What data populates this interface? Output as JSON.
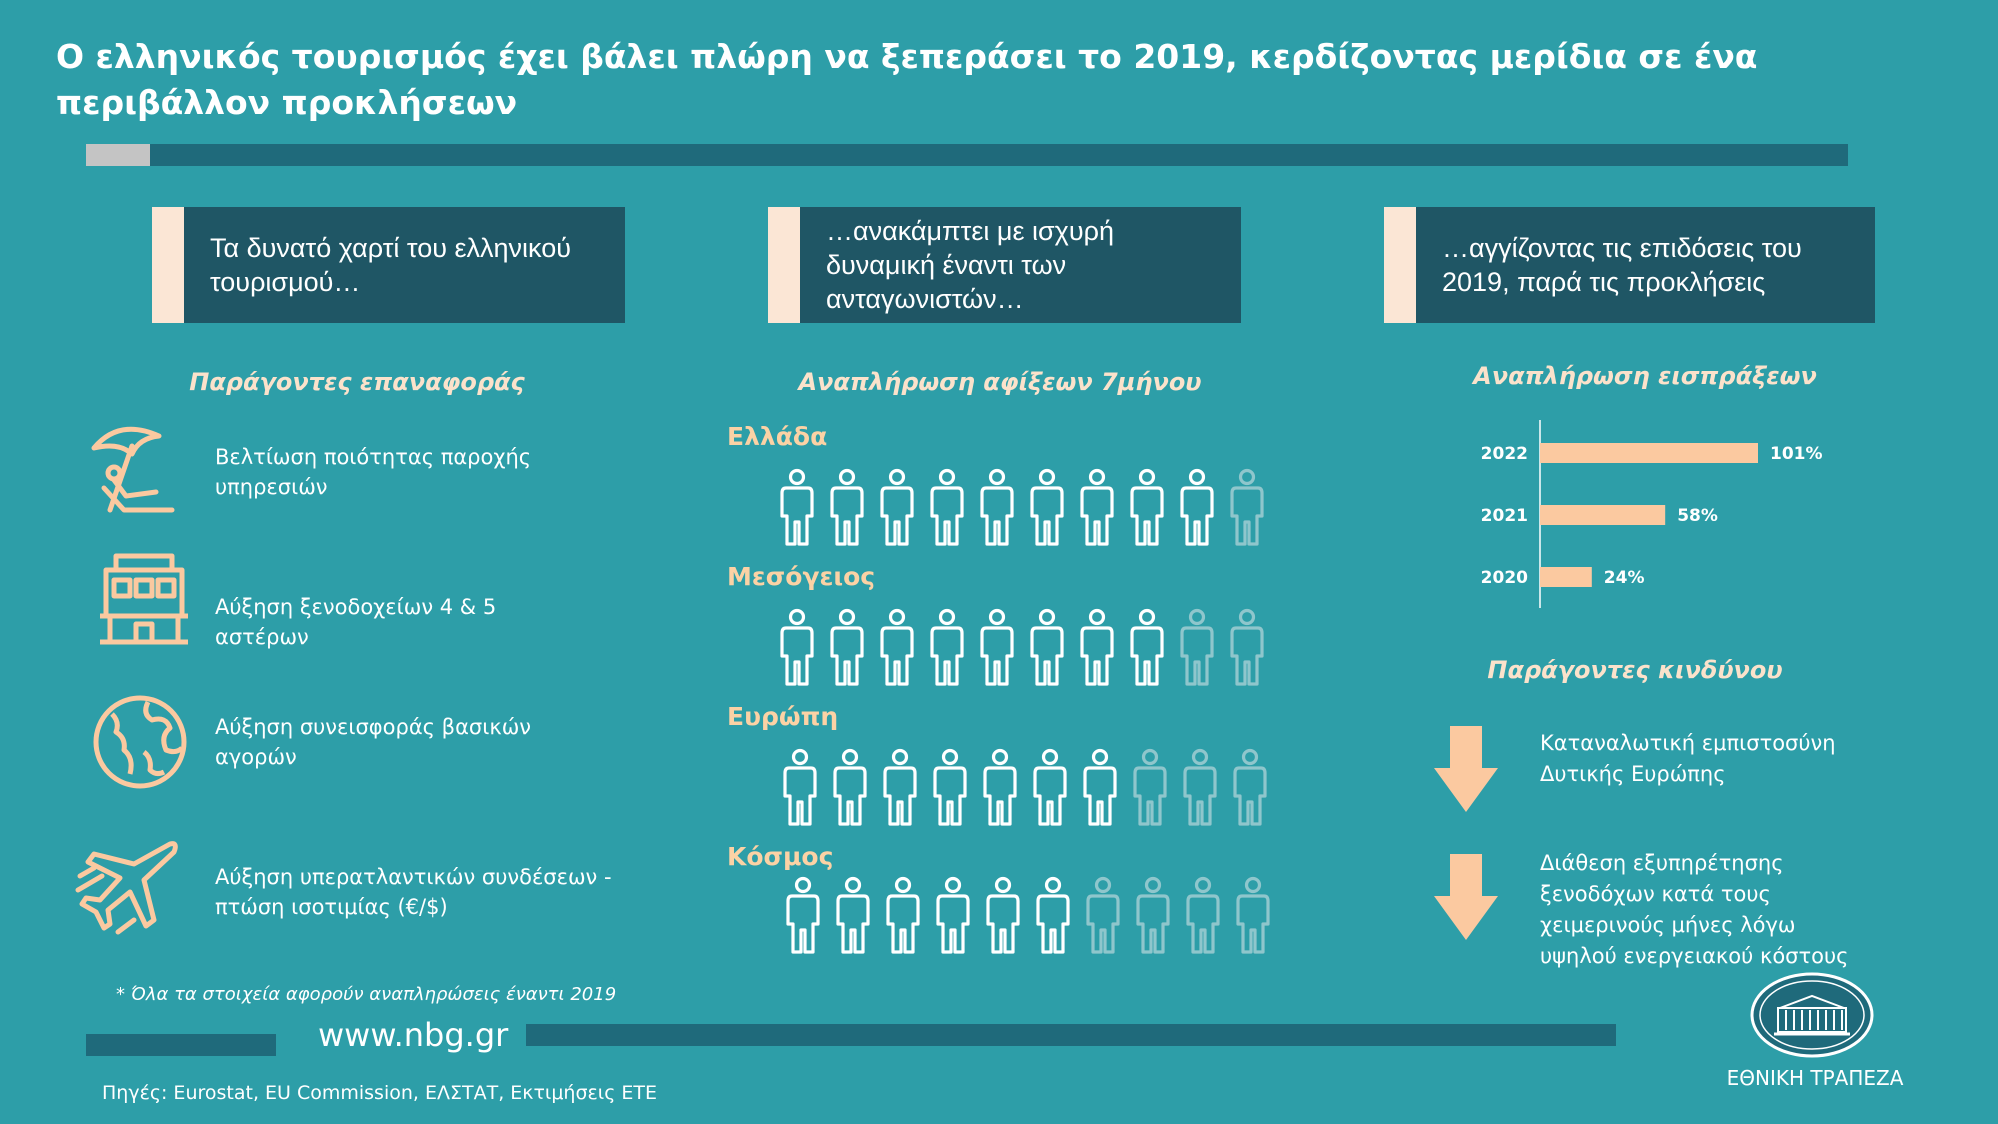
{
  "title": "Ο ελληνικός τουρισμός έχει βάλει πλώρη να ξεπεράσει το 2019, κερδίζοντας μερίδια σε ένα περιβάλλον προκλήσεων",
  "columns": {
    "left_header": "Τα δυνατό χαρτί του ελληνικού τουρισμού…",
    "middle_header": "…ανακάμπτει με ισχυρή δυναμική έναντι των ανταγωνιστών…",
    "right_header": "…αγγίζοντας τις επιδόσεις του 2019, παρά τις προκλήσεις"
  },
  "recovery_factors": {
    "title": "Παράγοντες επαναφοράς",
    "items": [
      {
        "icon": "beach-umbrella-icon",
        "text": "Βελτίωση ποιότητας παροχής υπηρεσιών"
      },
      {
        "icon": "hotel-icon",
        "text": "Αύξηση ξενοδοχείων 4 & 5 αστέρων"
      },
      {
        "icon": "globe-icon",
        "text": "Αύξηση συνεισφοράς βασικών αγορών"
      },
      {
        "icon": "airplane-icon",
        "text": "Αύξηση υπερατλαντικών συνδέσεων - πτώση ισοτιμίας (€/$)"
      }
    ]
  },
  "arrivals": {
    "title": "Αναπλήρωση αφίξεων 7μήνου",
    "regions": [
      {
        "label": "Ελλάδα",
        "filled": 9,
        "total": 10
      },
      {
        "label": "Μεσόγειος",
        "filled": 8,
        "total": 10
      },
      {
        "label": "Ευρώπη",
        "filled": 7,
        "total": 10
      },
      {
        "label": "Κόσμος",
        "filled": 6,
        "total": 10
      }
    ]
  },
  "chart_data": {
    "type": "bar",
    "orientation": "horizontal",
    "title": "Αναπλήρωση εισπράξεων",
    "categories": [
      "2022",
      "2021",
      "2020"
    ],
    "values": [
      101,
      58,
      24
    ],
    "value_labels": [
      "101%",
      "58%",
      "24%"
    ],
    "bar_color": "#fbc9a0"
  },
  "risk_factors": {
    "title": "Παράγοντες κινδύνου",
    "items": [
      {
        "icon": "arrow-down-icon",
        "text": "Καταναλωτική εμπιστοσύνη Δυτικής Ευρώπης"
      },
      {
        "icon": "arrow-down-icon",
        "text": "Διάθεση εξυπηρέτησης ξενοδόχων κατά τους χειμερινούς μήνες λόγω υψηλού ενεργειακού κόστους"
      }
    ]
  },
  "footnote": "* Όλα τα στοιχεία αφορούν αναπληρώσεις έναντι 2019",
  "website": "www.nbg.gr",
  "sources": "Πηγές: Eurostat, EU Commission, ΕΛΣΤΑΤ, Εκτιμήσεις ΕΤΕ",
  "bank_name": "ΕΘΝΙΚΗ ΤΡΑΠΕΖΑ",
  "colors": {
    "background": "#2d9ea8",
    "header_box": "#1f5665",
    "accent_peach": "#fbc9a0",
    "person_filled": "#ffffff",
    "person_empty": "#8fc6cc"
  }
}
